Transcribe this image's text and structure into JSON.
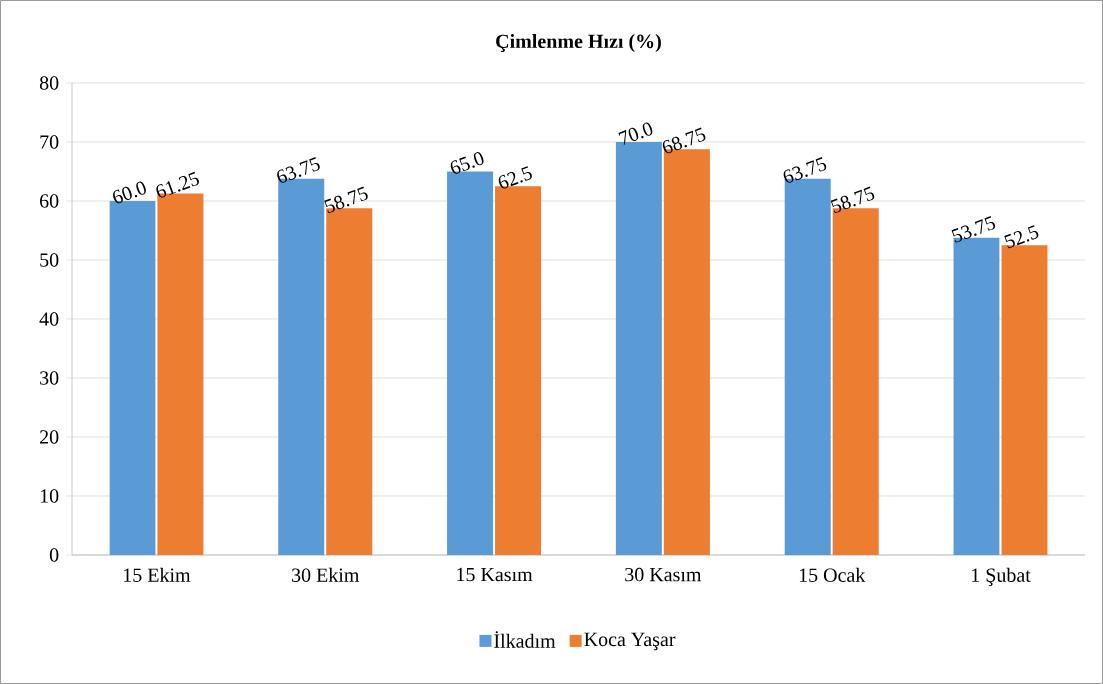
{
  "chart_data": {
    "type": "bar",
    "title": "Çimlenme Hızı (%)",
    "categories": [
      "15 Ekim",
      "30 Ekim",
      "15 Kasım",
      "30 Kasım",
      "15 Ocak",
      "1 Şubat"
    ],
    "series": [
      {
        "name": "İlkadım",
        "color": "#5b9bd5",
        "values": [
          60.0,
          63.75,
          65.0,
          70.0,
          63.75,
          53.75
        ],
        "value_labels": [
          "60.0",
          "63.75",
          "65.0",
          "70.0",
          "63.75",
          "53.75"
        ]
      },
      {
        "name": "Koca Yaşar",
        "color": "#ed7d31",
        "values": [
          61.25,
          58.75,
          62.5,
          68.75,
          58.75,
          52.5
        ],
        "value_labels": [
          "61.25",
          "58.75",
          "62.5",
          "68.75",
          "58.75",
          "52.5"
        ]
      }
    ],
    "ylim": [
      0,
      80
    ],
    "yticks": [
      0,
      10,
      20,
      30,
      40,
      50,
      60,
      70,
      80
    ],
    "grid": "y",
    "legend": "bottom"
  }
}
